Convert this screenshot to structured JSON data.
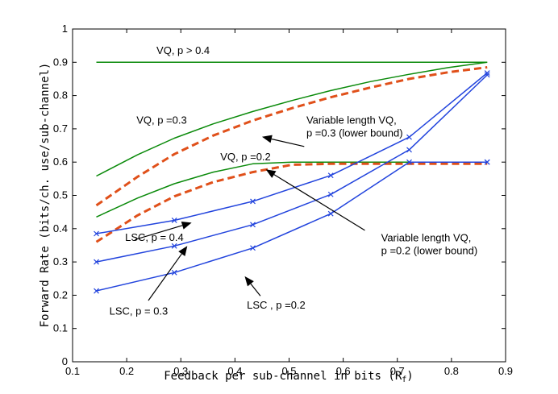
{
  "chart_data": {
    "type": "line",
    "title": "",
    "xlabel": "Feedback per sub-channel in bits (R",
    "xlabel_sub": "f",
    "xlabel_close": ")",
    "ylabel": "Forward Rate (bits/ch. use/sub-channel)",
    "xlim": [
      0.1,
      0.9
    ],
    "ylim": [
      0,
      1
    ],
    "xticks": [
      "0.1",
      "0.2",
      "0.3",
      "0.4",
      "0.5",
      "0.6",
      "0.7",
      "0.8",
      "0.9"
    ],
    "yticks": [
      "0",
      "0.1",
      "0.2",
      "0.3",
      "0.4",
      "0.5",
      "0.6",
      "0.7",
      "0.8",
      "0.9",
      "1"
    ],
    "grid": false,
    "series": [
      {
        "name": "VQ, p > 0.4",
        "color": "#0a8a0a",
        "style": "solid",
        "marker": "none",
        "x": [
          0.144,
          0.866
        ],
        "y": [
          0.9,
          0.9
        ]
      },
      {
        "name": "VQ, p =0.3",
        "color": "#0a8a0a",
        "style": "solid",
        "marker": "none",
        "x": [
          0.144,
          0.22,
          0.288,
          0.36,
          0.433,
          0.505,
          0.577,
          0.65,
          0.722,
          0.794,
          0.866
        ],
        "y": [
          0.558,
          0.622,
          0.672,
          0.715,
          0.752,
          0.785,
          0.815,
          0.842,
          0.864,
          0.884,
          0.9
        ]
      },
      {
        "name": "Variable length VQ, p =0.3 (lower bound)",
        "color": "#e0501a",
        "style": "dashed",
        "marker": "none",
        "x": [
          0.144,
          0.22,
          0.288,
          0.36,
          0.433,
          0.505,
          0.577,
          0.65,
          0.722,
          0.794,
          0.866
        ],
        "y": [
          0.47,
          0.556,
          0.624,
          0.68,
          0.725,
          0.762,
          0.795,
          0.824,
          0.85,
          0.87,
          0.885
        ]
      },
      {
        "name": "VQ, p =0.2",
        "color": "#0a8a0a",
        "style": "solid",
        "marker": "none",
        "x": [
          0.144,
          0.22,
          0.288,
          0.36,
          0.433,
          0.505,
          0.577,
          0.65,
          0.722,
          0.794,
          0.866
        ],
        "y": [
          0.435,
          0.492,
          0.535,
          0.57,
          0.595,
          0.6,
          0.6,
          0.6,
          0.6,
          0.6,
          0.6
        ]
      },
      {
        "name": "Variable length VQ, p =0.2 (lower bound)",
        "color": "#e0501a",
        "style": "dashed",
        "marker": "none",
        "x": [
          0.144,
          0.22,
          0.288,
          0.36,
          0.433,
          0.505,
          0.577,
          0.65,
          0.722,
          0.794,
          0.866
        ],
        "y": [
          0.36,
          0.44,
          0.497,
          0.54,
          0.57,
          0.592,
          0.595,
          0.595,
          0.595,
          0.595,
          0.595
        ]
      },
      {
        "name": "LSC, p = 0.4",
        "color": "#2244dd",
        "style": "solid",
        "marker": "x",
        "x": [
          0.144,
          0.288,
          0.433,
          0.577,
          0.722,
          0.866
        ],
        "y": [
          0.385,
          0.425,
          0.482,
          0.56,
          0.675,
          0.868
        ]
      },
      {
        "name": "LSC, p = 0.3",
        "color": "#2244dd",
        "style": "solid",
        "marker": "x",
        "x": [
          0.144,
          0.288,
          0.433,
          0.577,
          0.722,
          0.866
        ],
        "y": [
          0.3,
          0.348,
          0.412,
          0.503,
          0.637,
          0.862
        ]
      },
      {
        "name": "LSC , p =0.2",
        "color": "#2244dd",
        "style": "solid",
        "marker": "x",
        "x": [
          0.144,
          0.288,
          0.433,
          0.577,
          0.722,
          0.866,
          0.866
        ],
        "y": [
          0.213,
          0.268,
          0.342,
          0.445,
          0.6,
          0.6,
          0.6
        ]
      }
    ],
    "annotations": [
      {
        "id": "vq-p04",
        "lines": [
          "VQ, p > 0.4"
        ],
        "x": 0.255,
        "y": 0.925
      },
      {
        "id": "vq-p03",
        "lines": [
          "VQ, p =0.3"
        ],
        "x": 0.218,
        "y": 0.715
      },
      {
        "id": "vlvq-p03",
        "lines": [
          "Variable length VQ,",
          "p =0.3 (lower bound)"
        ],
        "x": 0.532,
        "y": 0.715
      },
      {
        "id": "vq-p02",
        "lines": [
          "VQ, p =0.2"
        ],
        "x": 0.373,
        "y": 0.605
      },
      {
        "id": "vlvq-p02",
        "lines": [
          "Variable length VQ,",
          "p =0.2 (lower bound)"
        ],
        "x": 0.67,
        "y": 0.362
      },
      {
        "id": "lsc-p04",
        "lines": [
          "LSC, p = 0.4"
        ],
        "x": 0.197,
        "y": 0.363
      },
      {
        "id": "lsc-p03",
        "lines": [
          "LSC, p = 0.3"
        ],
        "x": 0.168,
        "y": 0.142
      },
      {
        "id": "lsc-p02",
        "lines": [
          "LSC , p =0.2"
        ],
        "x": 0.422,
        "y": 0.16
      }
    ],
    "arrows": [
      {
        "from": [
          0.528,
          0.647
        ],
        "to": [
          0.45,
          0.676
        ]
      },
      {
        "from": [
          0.64,
          0.395
        ],
        "to": [
          0.457,
          0.578
        ]
      },
      {
        "from": [
          0.215,
          0.367
        ],
        "to": [
          0.32,
          0.418
        ]
      },
      {
        "from": [
          0.24,
          0.184
        ],
        "to": [
          0.312,
          0.348
        ]
      },
      {
        "from": [
          0.447,
          0.198
        ],
        "to": [
          0.418,
          0.257
        ]
      }
    ]
  }
}
